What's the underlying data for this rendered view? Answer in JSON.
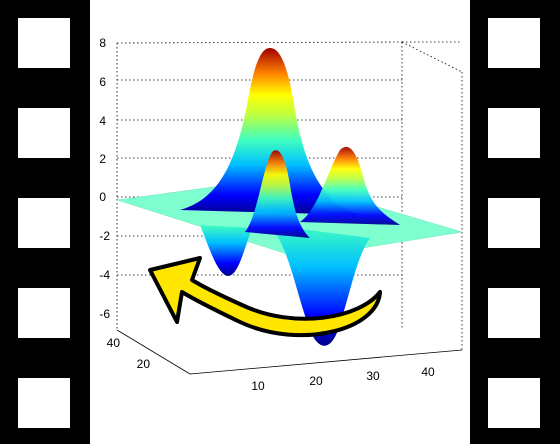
{
  "plot": {
    "zticks": [
      "8",
      "6",
      "4",
      "2",
      "0",
      "-2",
      "-4",
      "-6"
    ],
    "yticks": [
      "40",
      "20"
    ],
    "xticks": [
      "10",
      "20",
      "30",
      "40"
    ]
  },
  "colors": {
    "background": "#000000",
    "frame": "#ffffff",
    "arrow_fill": "#ffe600",
    "arrow_stroke": "#000000",
    "surface_plane": "#7fffd0"
  },
  "icons": {
    "replay": "curved-arrow-left-icon"
  }
}
